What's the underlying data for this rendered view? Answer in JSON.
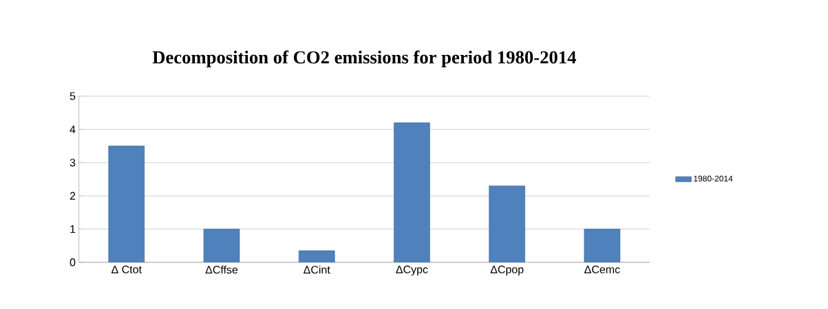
{
  "chart_data": {
    "type": "bar",
    "title": "Decomposition of CO2 emissions for period 1980-2014",
    "categories": [
      "Δ Ctot",
      "ΔCffse",
      "ΔCint",
      "ΔCypc",
      "ΔCpop",
      "ΔCemc"
    ],
    "series": [
      {
        "name": "1980-2014",
        "color": "#4f81bd",
        "values": [
          3.5,
          1.0,
          0.35,
          4.2,
          2.3,
          1.0
        ]
      }
    ],
    "ylim": [
      0,
      5
    ],
    "yticks": [
      0,
      1,
      2,
      3,
      4,
      5
    ],
    "grid": "y",
    "legend": "right"
  }
}
